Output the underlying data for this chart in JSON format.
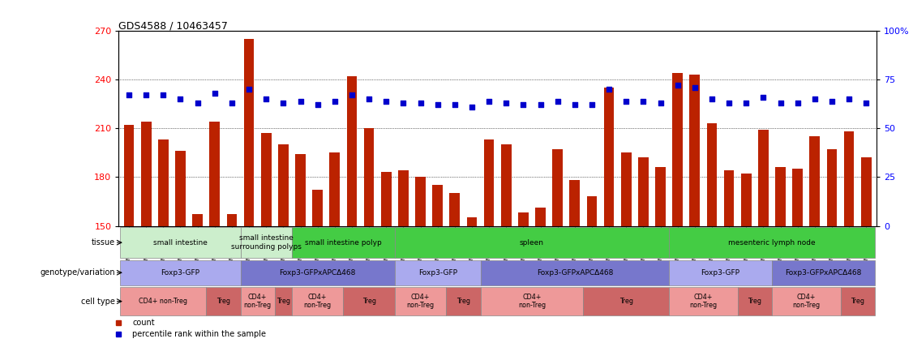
{
  "title": "GDS4588 / 10463457",
  "samples": [
    "GSM1011468",
    "GSM1011469",
    "GSM1011477",
    "GSM1011478",
    "GSM1011482",
    "GSM1011497",
    "GSM1011498",
    "GSM1011466",
    "GSM1011467",
    "GSM1011499",
    "GSM1011489",
    "GSM1011504",
    "GSM1011476",
    "GSM1011490",
    "GSM1011505",
    "GSM1011475",
    "GSM1011487",
    "GSM1011506",
    "GSM1011474",
    "GSM1011488",
    "GSM1011507",
    "GSM1011479",
    "GSM1011494",
    "GSM1011495",
    "GSM1011480",
    "GSM1011496",
    "GSM1011473",
    "GSM1011484",
    "GSM1011502",
    "GSM1011472",
    "GSM1011483",
    "GSM1011503",
    "GSM1011465",
    "GSM1011491",
    "GSM1011402",
    "GSM1011464",
    "GSM1011481",
    "GSM1011493",
    "GSM1011471",
    "GSM1011486",
    "GSM1011500",
    "GSM1011470",
    "GSM1011485",
    "GSM1011501"
  ],
  "bar_values": [
    212,
    214,
    203,
    196,
    157,
    214,
    157,
    265,
    207,
    200,
    194,
    172,
    195,
    242,
    210,
    183,
    184,
    180,
    175,
    170,
    155,
    203,
    200,
    158,
    161,
    197,
    178,
    168,
    235,
    195,
    192,
    186,
    244,
    243,
    213,
    184,
    182,
    209,
    186,
    185,
    205,
    197,
    208,
    192
  ],
  "dot_values": [
    67,
    67,
    67,
    65,
    63,
    68,
    63,
    70,
    65,
    63,
    64,
    62,
    64,
    67,
    65,
    64,
    63,
    63,
    62,
    62,
    61,
    64,
    63,
    62,
    62,
    64,
    62,
    62,
    70,
    64,
    64,
    63,
    72,
    71,
    65,
    63,
    63,
    66,
    63,
    63,
    65,
    64,
    65,
    63
  ],
  "ylim_left": [
    150,
    270
  ],
  "yticks_left": [
    150,
    180,
    210,
    240,
    270
  ],
  "yticks_right": [
    0,
    25,
    50,
    75,
    100
  ],
  "bar_color": "#bb2200",
  "dot_color": "#0000cc",
  "background_color": "#ffffff",
  "tissue_groups": [
    {
      "label": "small intestine",
      "start": 0,
      "end": 7,
      "color": "#cceecc"
    },
    {
      "label": "small intestine\nsurrounding polyps",
      "start": 7,
      "end": 10,
      "color": "#cceecc"
    },
    {
      "label": "small intestine polyp",
      "start": 10,
      "end": 16,
      "color": "#44cc44"
    },
    {
      "label": "spleen",
      "start": 16,
      "end": 32,
      "color": "#44cc44"
    },
    {
      "label": "mesenteric lymph node",
      "start": 32,
      "end": 44,
      "color": "#44cc44"
    }
  ],
  "genotype_groups": [
    {
      "label": "Foxp3-GFP",
      "start": 0,
      "end": 7,
      "color": "#aaaaee"
    },
    {
      "label": "Foxp3-GFPxAPCΔ468",
      "start": 7,
      "end": 16,
      "color": "#7777cc"
    },
    {
      "label": "Foxp3-GFP",
      "start": 16,
      "end": 21,
      "color": "#aaaaee"
    },
    {
      "label": "Foxp3-GFPxAPCΔ468",
      "start": 21,
      "end": 32,
      "color": "#7777cc"
    },
    {
      "label": "Foxp3-GFP",
      "start": 32,
      "end": 38,
      "color": "#aaaaee"
    },
    {
      "label": "Foxp3-GFPxAPCΔ468",
      "start": 38,
      "end": 44,
      "color": "#7777cc"
    }
  ],
  "celltype_groups": [
    {
      "label": "CD4+ non-Treg",
      "start": 0,
      "end": 5,
      "color": "#ee9999"
    },
    {
      "label": "Treg",
      "start": 5,
      "end": 7,
      "color": "#cc6666"
    },
    {
      "label": "CD4+\nnon-Treg",
      "start": 7,
      "end": 9,
      "color": "#ee9999"
    },
    {
      "label": "Treg",
      "start": 9,
      "end": 10,
      "color": "#cc6666"
    },
    {
      "label": "CD4+\nnon-Treg",
      "start": 10,
      "end": 13,
      "color": "#ee9999"
    },
    {
      "label": "Treg",
      "start": 13,
      "end": 16,
      "color": "#cc6666"
    },
    {
      "label": "CD4+\nnon-Treg",
      "start": 16,
      "end": 19,
      "color": "#ee9999"
    },
    {
      "label": "Treg",
      "start": 19,
      "end": 21,
      "color": "#cc6666"
    },
    {
      "label": "CD4+\nnon-Treg",
      "start": 21,
      "end": 27,
      "color": "#ee9999"
    },
    {
      "label": "Treg",
      "start": 27,
      "end": 32,
      "color": "#cc6666"
    },
    {
      "label": "CD4+\nnon-Treg",
      "start": 32,
      "end": 36,
      "color": "#ee9999"
    },
    {
      "label": "Treg",
      "start": 36,
      "end": 38,
      "color": "#cc6666"
    },
    {
      "label": "CD4+\nnon-Treg",
      "start": 38,
      "end": 42,
      "color": "#ee9999"
    },
    {
      "label": "Treg",
      "start": 42,
      "end": 44,
      "color": "#cc6666"
    }
  ],
  "row_labels": [
    "tissue",
    "genotype/variation",
    "cell type"
  ],
  "legend_items": [
    {
      "label": "count",
      "color": "#bb2200"
    },
    {
      "label": "percentile rank within the sample",
      "color": "#0000cc"
    }
  ]
}
